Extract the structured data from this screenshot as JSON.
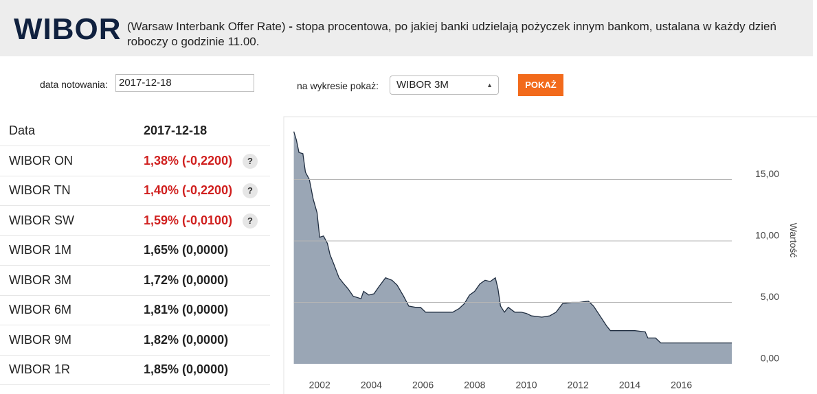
{
  "header": {
    "title": "WIBOR",
    "description_start": "(Warsaw Interbank Offer Rate)",
    "dash": "-",
    "description_rest": "stopa procentowa, po jakiej banki udzielają pożyczek innym bankom, ustalana w każdy dzień roboczy o godzinie 11.00."
  },
  "form": {
    "date_label": "data notowania:",
    "date_value": "2017-12-18",
    "chart_label": "na wykresie pokaż:",
    "chart_select": "WIBOR 3M",
    "button": "POKAŻ"
  },
  "table": {
    "header": [
      "Data",
      "2017-12-18"
    ],
    "help": "?",
    "rows": [
      {
        "label": "WIBOR ON",
        "value": "1,38% (-0,2200)",
        "red": true,
        "has_help": true
      },
      {
        "label": "WIBOR TN",
        "value": "1,40% (-0,2200)",
        "red": true,
        "has_help": true
      },
      {
        "label": "WIBOR SW",
        "value": "1,59% (-0,0100)",
        "red": true,
        "has_help": true
      },
      {
        "label": "WIBOR 1M",
        "value": "1,65% (0,0000)",
        "red": false,
        "has_help": false
      },
      {
        "label": "WIBOR 3M",
        "value": "1,72% (0,0000)",
        "red": false,
        "has_help": false
      },
      {
        "label": "WIBOR 6M",
        "value": "1,81% (0,0000)",
        "red": false,
        "has_help": false
      },
      {
        "label": "WIBOR 9M",
        "value": "1,82% (0,0000)",
        "red": false,
        "has_help": false
      },
      {
        "label": "WIBOR 1R",
        "value": "1,85% (0,0000)",
        "red": false,
        "has_help": false
      }
    ]
  },
  "chart_data": {
    "type": "area",
    "y_label": "Wartość",
    "color": "#9aa6b5",
    "line_color": "#1f2d40",
    "grid": true,
    "x": [
      2001.0,
      2001.1,
      2001.2,
      2001.35,
      2001.45,
      2001.6,
      2001.75,
      2001.9,
      2002.0,
      2002.15,
      2002.3,
      2002.4,
      2002.55,
      2002.75,
      2002.9,
      2003.1,
      2003.3,
      2003.6,
      2003.7,
      2003.9,
      2004.1,
      2004.3,
      2004.55,
      2004.8,
      2005.0,
      2005.25,
      2005.45,
      2005.7,
      2005.9,
      2006.1,
      2006.5,
      2007.15,
      2007.4,
      2007.6,
      2007.8,
      2008.0,
      2008.2,
      2008.4,
      2008.6,
      2008.8,
      2008.9,
      2009.0,
      2009.15,
      2009.3,
      2009.55,
      2009.8,
      2010.0,
      2010.2,
      2010.6,
      2010.9,
      2011.15,
      2011.4,
      2011.75,
      2012.05,
      2012.4,
      2012.6,
      2012.85,
      2013.1,
      2013.25,
      2013.65,
      2014.2,
      2014.6,
      2014.7,
      2015.0,
      2015.2,
      2015.65,
      2016.2,
      2017.0,
      2017.95
    ],
    "values": [
      18.9,
      18.2,
      17.2,
      17.1,
      15.6,
      15.0,
      13.4,
      12.3,
      10.3,
      10.4,
      9.8,
      8.9,
      8.1,
      7.0,
      6.6,
      6.1,
      5.5,
      5.3,
      5.9,
      5.6,
      5.7,
      6.3,
      7.0,
      6.8,
      6.4,
      5.5,
      4.7,
      4.6,
      4.6,
      4.2,
      4.2,
      4.2,
      4.5,
      4.9,
      5.6,
      5.9,
      6.5,
      6.8,
      6.7,
      7.0,
      6.1,
      4.7,
      4.2,
      4.6,
      4.2,
      4.2,
      4.1,
      3.9,
      3.8,
      3.9,
      4.2,
      4.9,
      5.0,
      5.0,
      5.1,
      4.7,
      3.9,
      3.1,
      2.7,
      2.7,
      2.7,
      2.6,
      2.1,
      2.1,
      1.7,
      1.7,
      1.7,
      1.7,
      1.7
    ],
    "xlim": [
      2001,
      2017.95
    ],
    "xticks": [
      2002,
      2004,
      2006,
      2008,
      2010,
      2012,
      2014,
      2016
    ],
    "ylim": [
      0,
      20
    ],
    "yticks": [
      {
        "value": 0,
        "label": "0,00"
      },
      {
        "value": 5,
        "label": "5,00"
      },
      {
        "value": 10,
        "label": "10,00"
      },
      {
        "value": 15,
        "label": "15,00"
      }
    ]
  }
}
